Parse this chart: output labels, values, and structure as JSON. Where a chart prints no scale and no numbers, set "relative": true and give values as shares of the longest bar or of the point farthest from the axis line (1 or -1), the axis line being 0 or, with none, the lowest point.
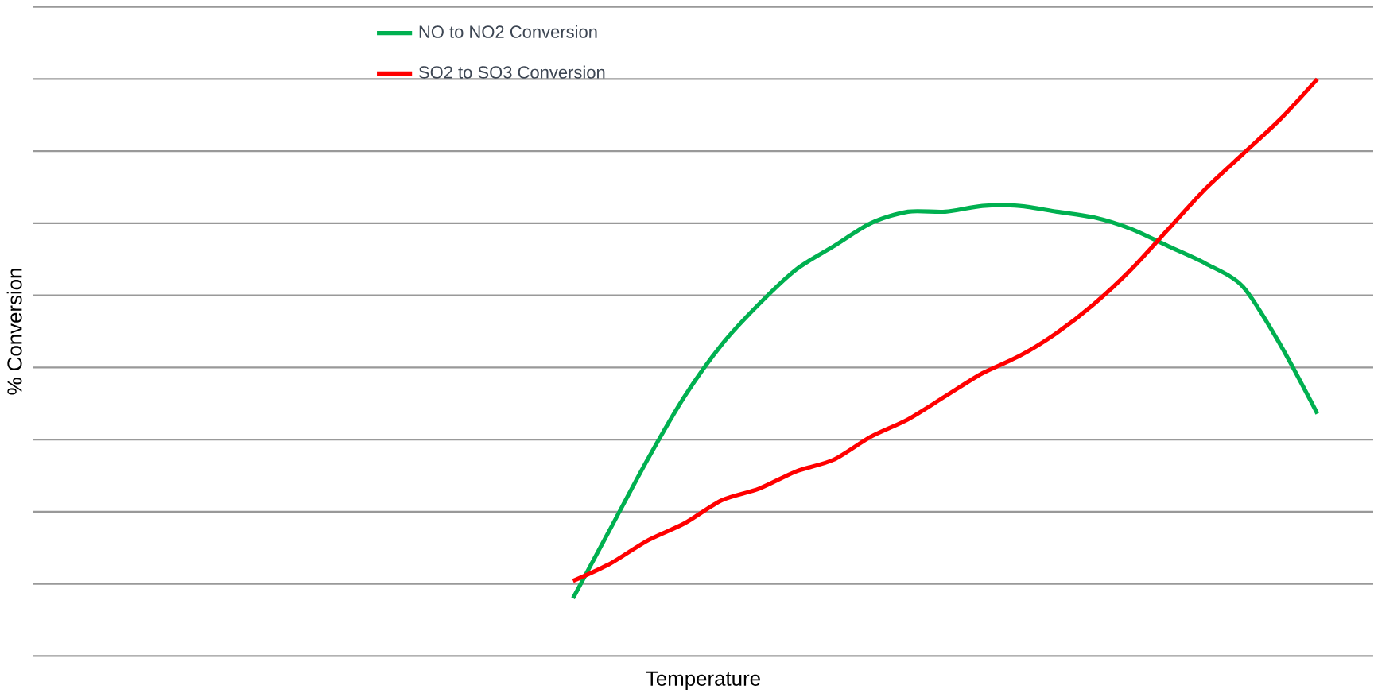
{
  "chart_data": {
    "type": "line",
    "relative": true,
    "xlabel": "Temperature",
    "ylabel": "% Conversion",
    "grid": "y",
    "legend": "top",
    "marker": "none",
    "line_style": "solid",
    "categories": [
      null,
      null,
      null,
      null,
      null,
      null,
      null,
      null,
      null,
      null,
      null,
      null,
      null,
      null,
      null,
      null,
      null,
      null,
      null,
      null,
      null,
      null,
      null,
      null,
      null,
      null,
      null,
      null,
      null,
      null,
      null,
      null,
      null,
      null,
      null,
      null
    ],
    "series": [
      {
        "name": "NO to NO2 Conversion",
        "color": "#00b050",
        "values": [
          null,
          null,
          null,
          null,
          null,
          null,
          null,
          null,
          null,
          null,
          null,
          null,
          null,
          null,
          0.1,
          0.22,
          0.34,
          0.45,
          0.54,
          0.61,
          0.67,
          0.71,
          0.75,
          0.77,
          0.77,
          0.78,
          0.78,
          0.77,
          0.76,
          0.74,
          0.71,
          0.68,
          0.64,
          0.54,
          0.42,
          null
        ]
      },
      {
        "name": "SO2 to SO3 Conversion",
        "color": "#ff0000",
        "values": [
          null,
          null,
          null,
          null,
          null,
          null,
          null,
          null,
          null,
          null,
          null,
          null,
          null,
          null,
          0.13,
          0.16,
          0.2,
          0.23,
          0.27,
          0.29,
          0.32,
          0.34,
          0.38,
          0.41,
          0.45,
          0.49,
          0.52,
          0.56,
          0.61,
          0.67,
          0.74,
          0.81,
          0.87,
          0.93,
          1,
          null
        ]
      }
    ]
  }
}
